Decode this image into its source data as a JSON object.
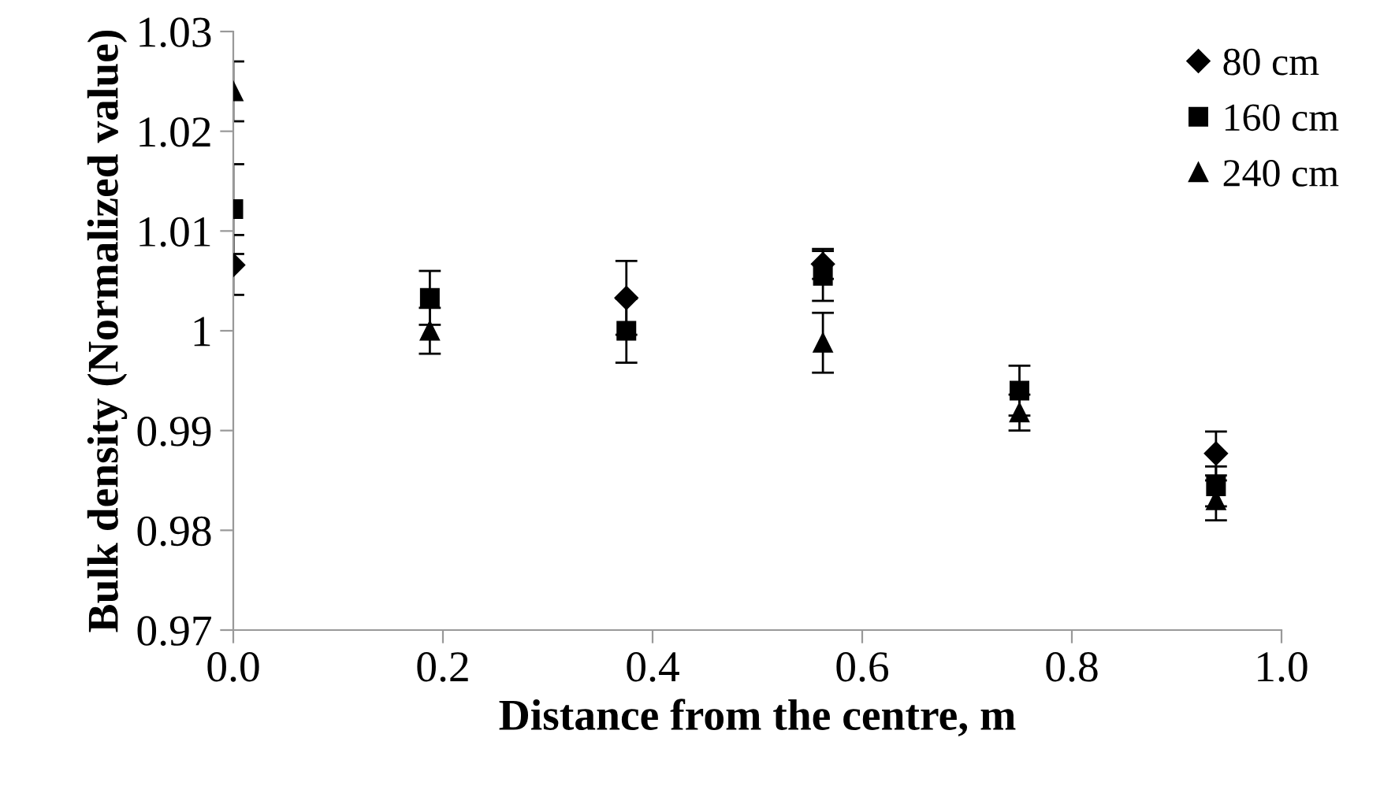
{
  "chart_data": {
    "type": "scatter",
    "xlabel": "Distance from the centre, m",
    "ylabel": "Bulk density (Normalized value)",
    "x": [
      0,
      0.1875,
      0.375,
      0.5625,
      0.75,
      0.9375
    ],
    "series": [
      {
        "name": "80 cm",
        "color": "#000000",
        "marker": "diamond",
        "values": [
          1.0066,
          null,
          1.0033,
          1.0067,
          null,
          0.9877
        ],
        "errors": [
          0.003,
          null,
          0.0037,
          0.0015,
          null,
          0.0022
        ]
      },
      {
        "name": "160 cm",
        "color": "#000000",
        "marker": "square",
        "values": [
          1.0122,
          1.0033,
          1.0,
          1.0055,
          0.994,
          0.9844
        ],
        "errors": [
          0.0045,
          0.0027,
          0.0032,
          0.0025,
          0.0025,
          0.002
        ]
      },
      {
        "name": "240 cm",
        "color": "#000000",
        "marker": "triangle",
        "values": [
          1.024,
          1.0,
          null,
          0.9988,
          0.9918,
          0.983
        ],
        "errors": [
          0.003,
          0.0023,
          null,
          0.003,
          0.0018,
          0.002
        ]
      }
    ],
    "xlim": [
      0,
      1
    ],
    "xticks": [
      {
        "value": 0,
        "label": "0.0"
      },
      0.2,
      0.4,
      0.6,
      0.8,
      {
        "value": 1,
        "label": "1.0"
      }
    ],
    "ylim": [
      0.97,
      1.03
    ],
    "yticks": [
      0.97,
      0.98,
      0.99,
      1,
      1.01,
      1.02,
      1.03
    ],
    "grid": false,
    "legend": "top right"
  }
}
